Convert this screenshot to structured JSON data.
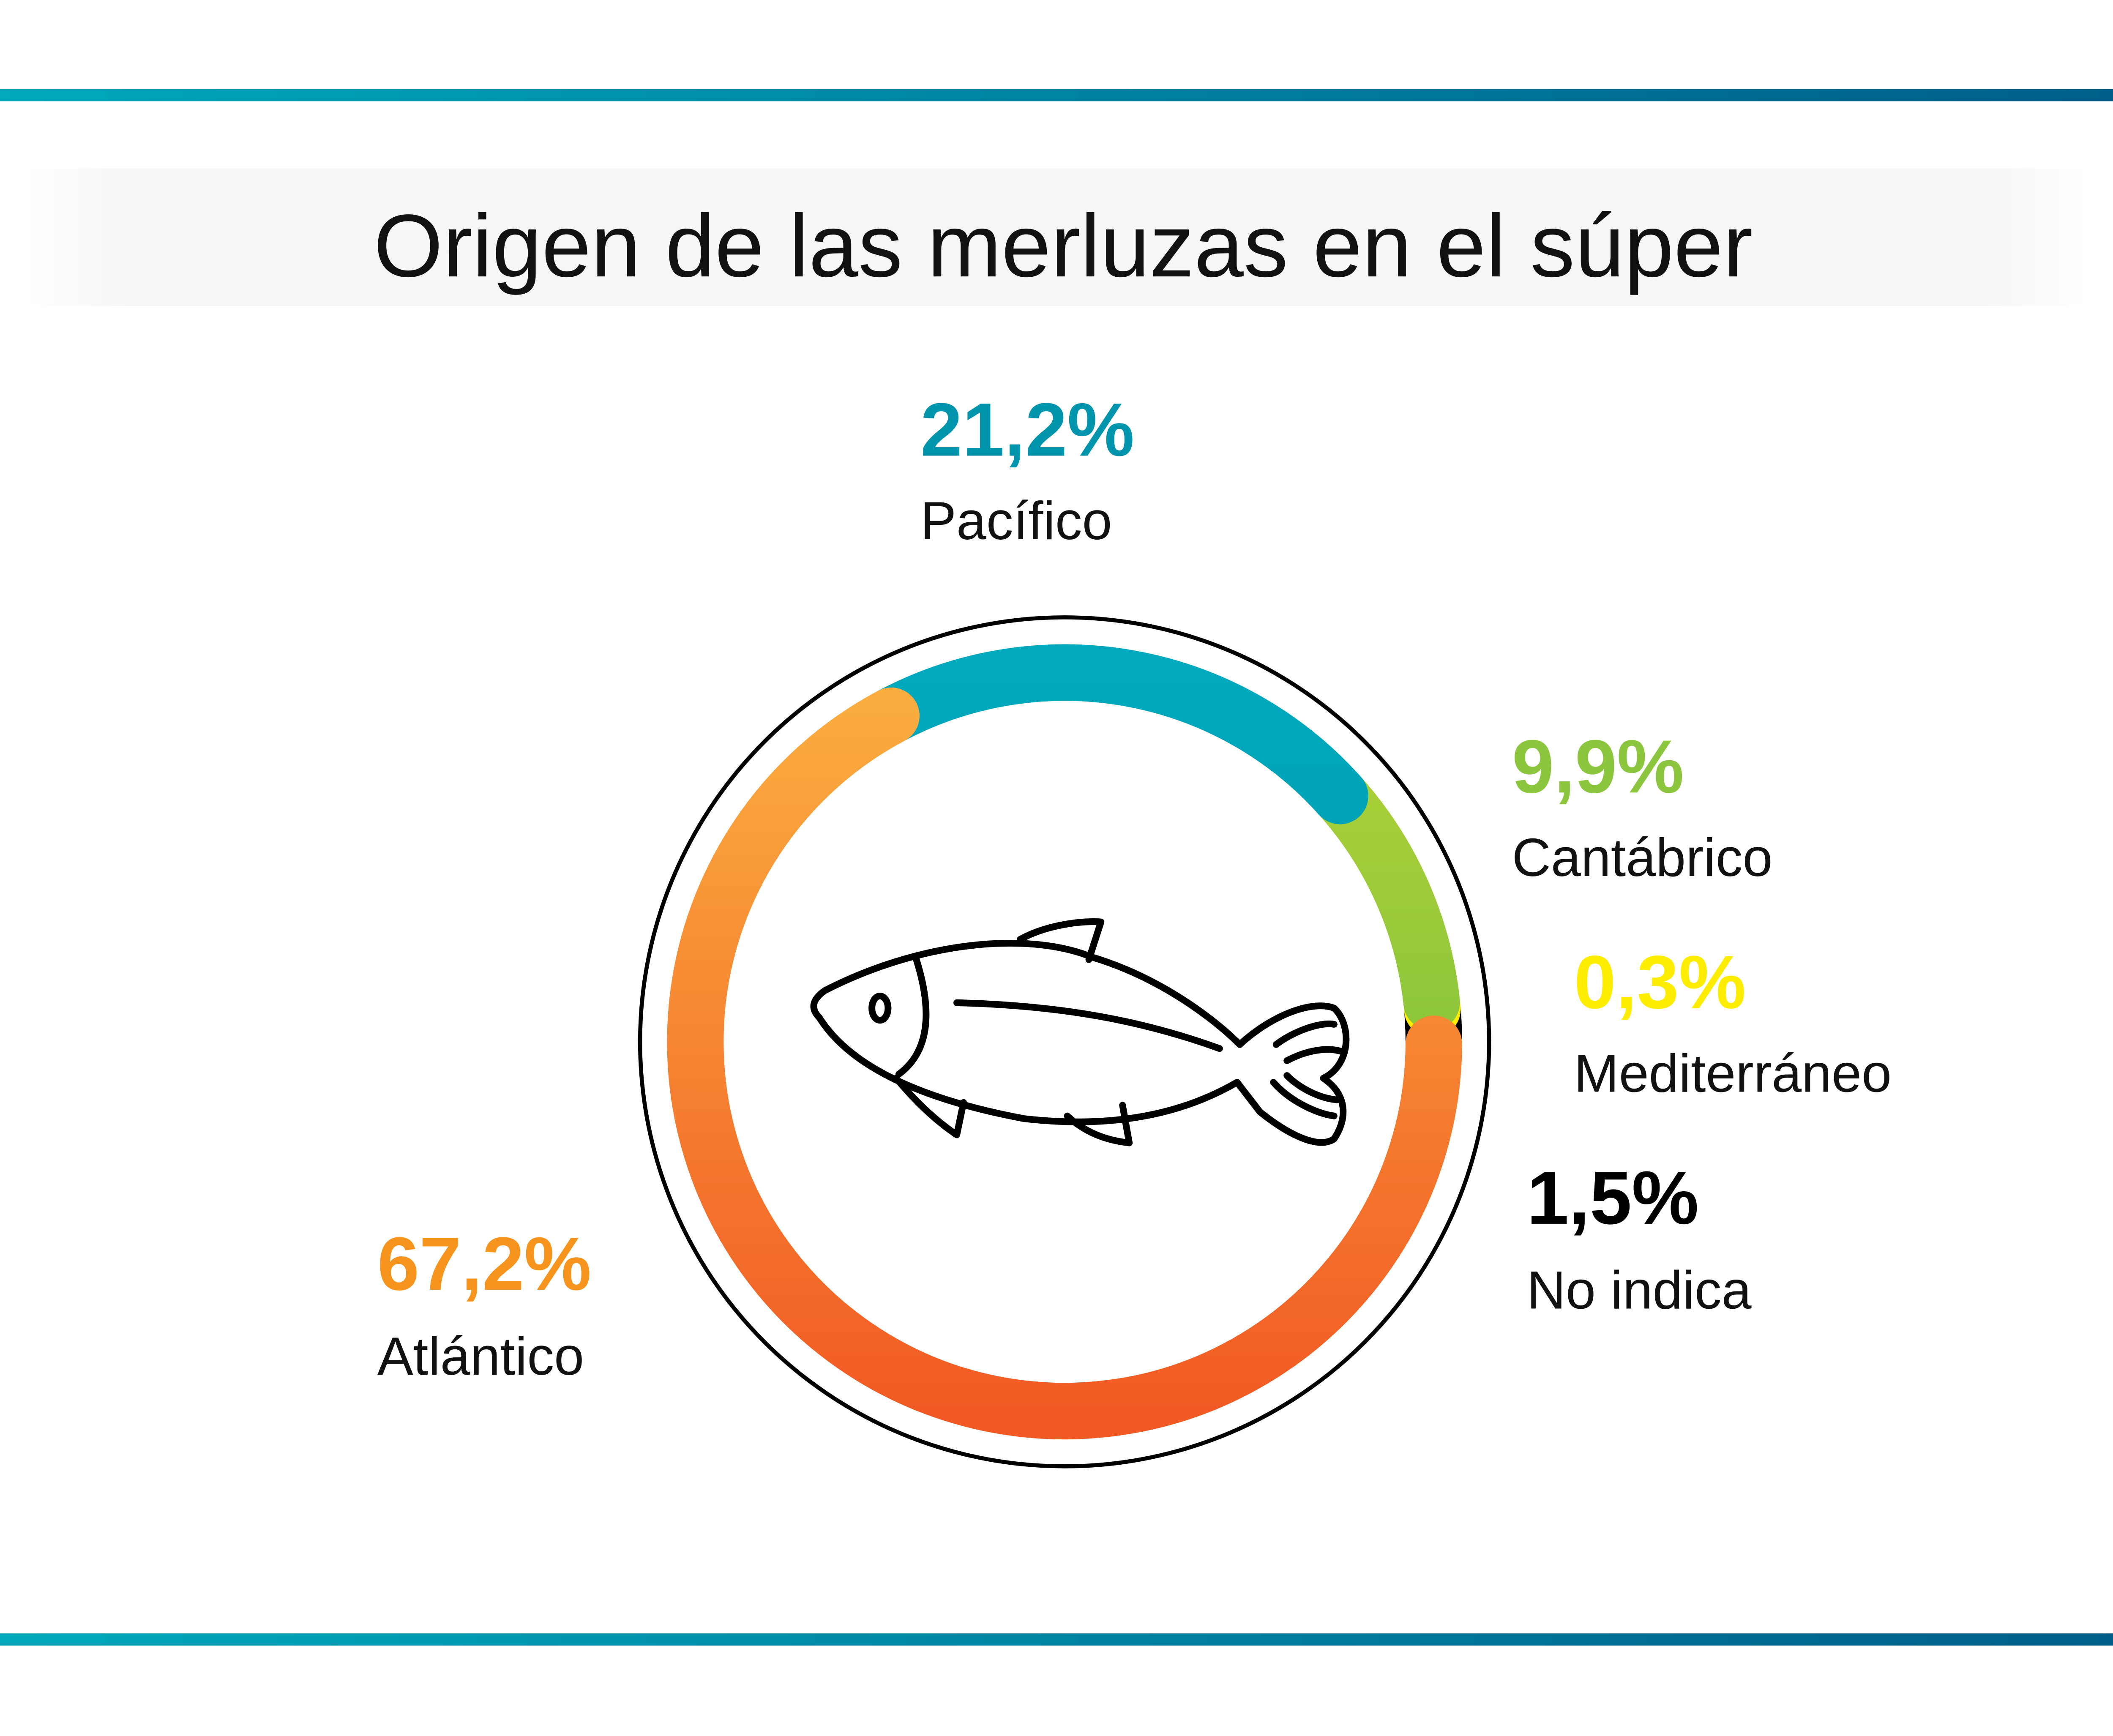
{
  "chart_data": {
    "type": "pie",
    "variant": "donut",
    "title": "Origen de las merluzas en el súper",
    "center_icon": "fish-icon",
    "unit": "%",
    "slices": [
      {
        "label": "Pacífico",
        "value": 21.2,
        "value_label": "21,2%",
        "colors": [
          "#00a9bd",
          "#008ca3"
        ]
      },
      {
        "label": "Cantábrico",
        "value": 9.9,
        "value_label": "9,9%",
        "colors": [
          "#b5d334",
          "#62b946"
        ]
      },
      {
        "label": "Mediterráneo",
        "value": 0.3,
        "value_label": "0,3%",
        "colors": [
          "#ffed00",
          "#ffed00"
        ]
      },
      {
        "label": "No indica",
        "value": 1.5,
        "value_label": "1,5%",
        "colors": [
          "#000000",
          "#000000"
        ]
      },
      {
        "label": "Atlántico",
        "value": 67.2,
        "value_label": "67,2%",
        "colors": [
          "#fbb040",
          "#f15a24"
        ]
      }
    ]
  },
  "theme": {
    "bar_colors": [
      "#00a9bd",
      "#005f8a"
    ],
    "title_band": "#f5f6f8"
  }
}
